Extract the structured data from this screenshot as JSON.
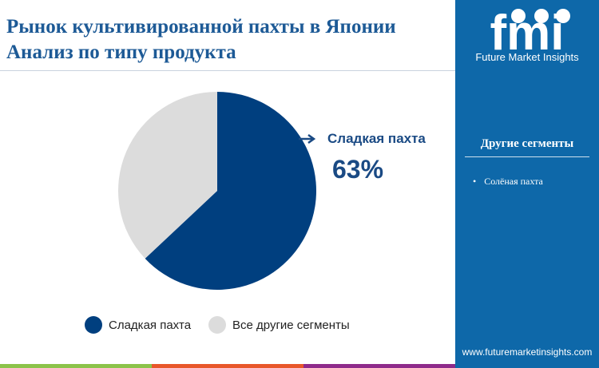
{
  "title_lines": [
    "Рынок культивированной пахты в Японии",
    "Анализ по типу продукта"
  ],
  "brand": {
    "logo_text": "fmi",
    "name": "Future Market Insights",
    "url": "www.futuremarketinsights.com"
  },
  "side_panel": {
    "title": "Другие сегменты",
    "items": [
      "Солёная пахта"
    ]
  },
  "colors": {
    "primary": "#003f7f",
    "secondary": "#dcdcdc",
    "panel": "#0e68a9",
    "bars": [
      "#8bc34a",
      "#e8572a",
      "#8e2a8a"
    ]
  },
  "chart_data": {
    "type": "pie",
    "categories": [
      "Сладкая пахта",
      "Все другие сегменты"
    ],
    "values": [
      63,
      37
    ],
    "callout": {
      "label": "Сладкая пахта",
      "value": "63%"
    },
    "legend_placement": "bottom"
  }
}
